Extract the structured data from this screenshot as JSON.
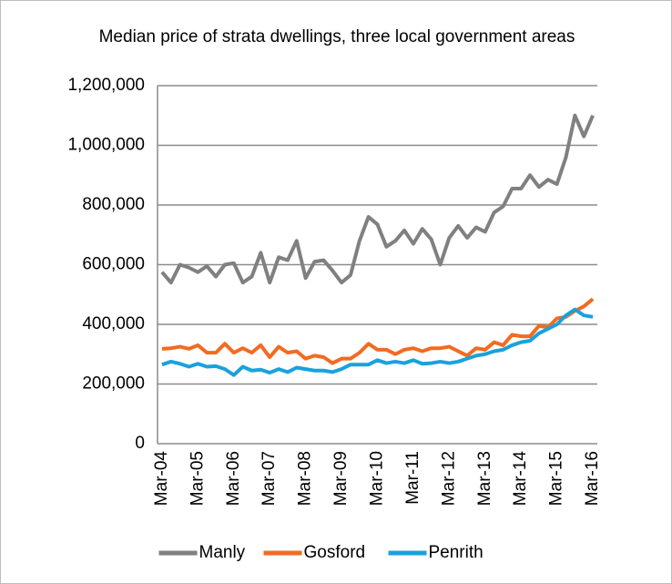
{
  "chart_data": {
    "type": "line",
    "title": "Median price of strata dwellings, three local government areas",
    "categories": [
      "Mar-04",
      null,
      null,
      null,
      "Mar-05",
      null,
      null,
      null,
      "Mar-06",
      null,
      null,
      null,
      "Mar-07",
      null,
      null,
      null,
      "Mar-08",
      null,
      null,
      null,
      "Mar-09",
      null,
      null,
      null,
      "Mar-10",
      null,
      null,
      null,
      "Mar-11",
      null,
      null,
      null,
      "Mar-12",
      null,
      null,
      null,
      "Mar-13",
      null,
      null,
      null,
      "Mar-14",
      null,
      null,
      null,
      "Mar-15",
      null,
      null,
      null,
      "Mar-16"
    ],
    "series": [
      {
        "name": "Manly",
        "color": "#808080",
        "values": [
          575000,
          540000,
          600000,
          590000,
          575000,
          595000,
          560000,
          600000,
          605000,
          540000,
          560000,
          640000,
          540000,
          625000,
          615000,
          680000,
          555000,
          610000,
          615000,
          580000,
          540000,
          565000,
          680000,
          760000,
          735000,
          660000,
          680000,
          715000,
          670000,
          720000,
          685000,
          600000,
          690000,
          730000,
          690000,
          725000,
          710000,
          775000,
          795000,
          855000,
          855000,
          900000,
          860000,
          885000,
          870000,
          960000,
          1100000,
          1030000,
          1100000
        ]
      },
      {
        "name": "Gosford",
        "color": "#f26b21",
        "values": [
          318000,
          320000,
          325000,
          318000,
          330000,
          305000,
          305000,
          335000,
          305000,
          320000,
          305000,
          330000,
          290000,
          325000,
          305000,
          310000,
          285000,
          295000,
          290000,
          270000,
          285000,
          285000,
          305000,
          335000,
          315000,
          315000,
          300000,
          315000,
          320000,
          310000,
          320000,
          320000,
          325000,
          310000,
          295000,
          320000,
          315000,
          340000,
          330000,
          365000,
          360000,
          360000,
          395000,
          390000,
          420000,
          425000,
          445000,
          460000,
          485000
        ]
      },
      {
        "name": "Penrith",
        "color": "#1ba1dc",
        "values": [
          265000,
          275000,
          268000,
          258000,
          268000,
          258000,
          260000,
          250000,
          230000,
          258000,
          245000,
          248000,
          238000,
          250000,
          240000,
          255000,
          250000,
          245000,
          245000,
          240000,
          250000,
          265000,
          265000,
          265000,
          280000,
          270000,
          275000,
          270000,
          280000,
          268000,
          270000,
          275000,
          270000,
          275000,
          285000,
          295000,
          300000,
          310000,
          315000,
          330000,
          340000,
          345000,
          370000,
          385000,
          400000,
          430000,
          450000,
          430000,
          425000
        ]
      }
    ],
    "ylim": [
      0,
      1200000
    ],
    "yticks": [
      0,
      {
        "value": 200000,
        "label": "200,000"
      },
      {
        "value": 400000,
        "label": "400,000"
      },
      {
        "value": 600000,
        "label": "600,000"
      },
      {
        "value": 800000,
        "label": "800,000"
      },
      {
        "value": 1000000,
        "label": "1,000,000"
      },
      {
        "value": 1200000,
        "label": "1,200,000"
      }
    ],
    "grid": true,
    "legend": "bottom"
  }
}
